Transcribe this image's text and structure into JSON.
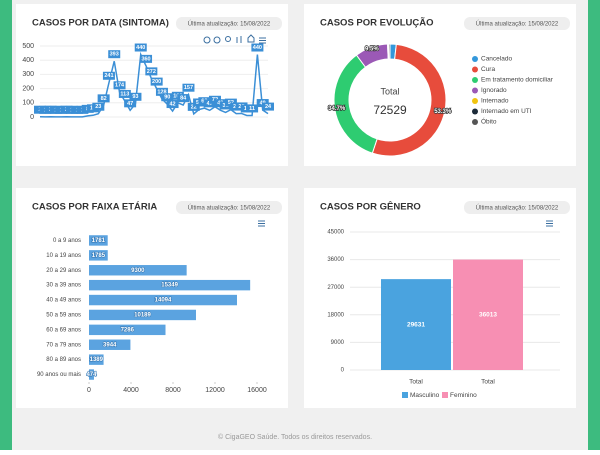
{
  "chart_data": [
    {
      "type": "line",
      "title": "CASOS POR DATA (SINTOMA)",
      "updated": "Última atualização: 15/08/2022",
      "categories": [
        null,
        null,
        null,
        null,
        null,
        null,
        null,
        null,
        null,
        null,
        null,
        null,
        null,
        null,
        null,
        null,
        null,
        null,
        null,
        null,
        null,
        null,
        null,
        null,
        null,
        null,
        null,
        null,
        null,
        null,
        null,
        null,
        null,
        null,
        null,
        null,
        null,
        null,
        null,
        null,
        null,
        null,
        null,
        null
      ],
      "values": [
        2,
        1,
        2,
        1,
        1,
        2,
        1,
        1,
        1,
        8,
        12,
        23,
        82,
        241,
        393,
        174,
        113,
        47,
        93,
        440,
        360,
        272,
        200,
        128,
        90,
        42,
        100,
        84,
        157,
        22,
        53,
        62,
        47,
        72,
        48,
        32,
        52,
        24,
        25,
        11,
        11,
        440,
        49,
        24
      ],
      "color": "#3b8fd6",
      "ylim": [
        0,
        500
      ],
      "yticks": [
        0,
        100,
        200,
        300,
        400,
        500
      ]
    },
    {
      "type": "donut",
      "title": "CASOS POR EVOLUÇÃO",
      "updated": "Última atualização: 15/08/2022",
      "total_label": "Total",
      "total": 72529,
      "categories": [
        "Cancelado",
        "Cura",
        "Em tratamento domiciliar",
        "Ignorado",
        "Internado",
        "Internado em UTI",
        "Óbito"
      ],
      "values": [
        1.8,
        53.3,
        34.7,
        9.5,
        0.2,
        0.1,
        0.4
      ],
      "value_labels": [
        null,
        "53.3%",
        "34.7%",
        "9.5%",
        null,
        null,
        null
      ],
      "colors": [
        "#3498db",
        "#e74c3c",
        "#2ecc71",
        "#9b59b6",
        "#f1c40f",
        "#1c2b39",
        "#555555"
      ]
    },
    {
      "type": "hbar",
      "title": "CASOS POR FAIXA ETÁRIA",
      "updated": "Última atualização: 15/08/2022",
      "categories": [
        "0 a 9 anos",
        "10 a 19 anos",
        "20 a 29 anos",
        "30 a 39 anos",
        "40 a 49 anos",
        "50 a 59 anos",
        "60 a 69 anos",
        "70 a 79 anos",
        "80 a 89 anos",
        "90 anos ou mais"
      ],
      "values": [
        1781,
        1785,
        9300,
        15349,
        14094,
        10189,
        7286,
        3944,
        1389,
        474
      ],
      "color": "#5ba3e0",
      "xlim": [
        0,
        16000
      ],
      "xticks": [
        0,
        4000,
        8000,
        12000,
        16000
      ]
    },
    {
      "type": "groupbar",
      "title": "CASOS POR GÊNERO",
      "updated": "Última atualização: 15/08/2022",
      "categories": [
        "Total"
      ],
      "series": [
        {
          "name": "Masculino",
          "color": "#4aa3df",
          "values": [
            29631
          ]
        },
        {
          "name": "Feminino",
          "color": "#f78fb3",
          "values": [
            36013
          ]
        }
      ],
      "ylim": [
        0,
        45000
      ],
      "yticks": [
        0,
        9000,
        18000,
        27000,
        36000,
        45000
      ],
      "grid": true
    }
  ],
  "footer": "© CigaGEO Saúde. Todos os direitos reservados."
}
